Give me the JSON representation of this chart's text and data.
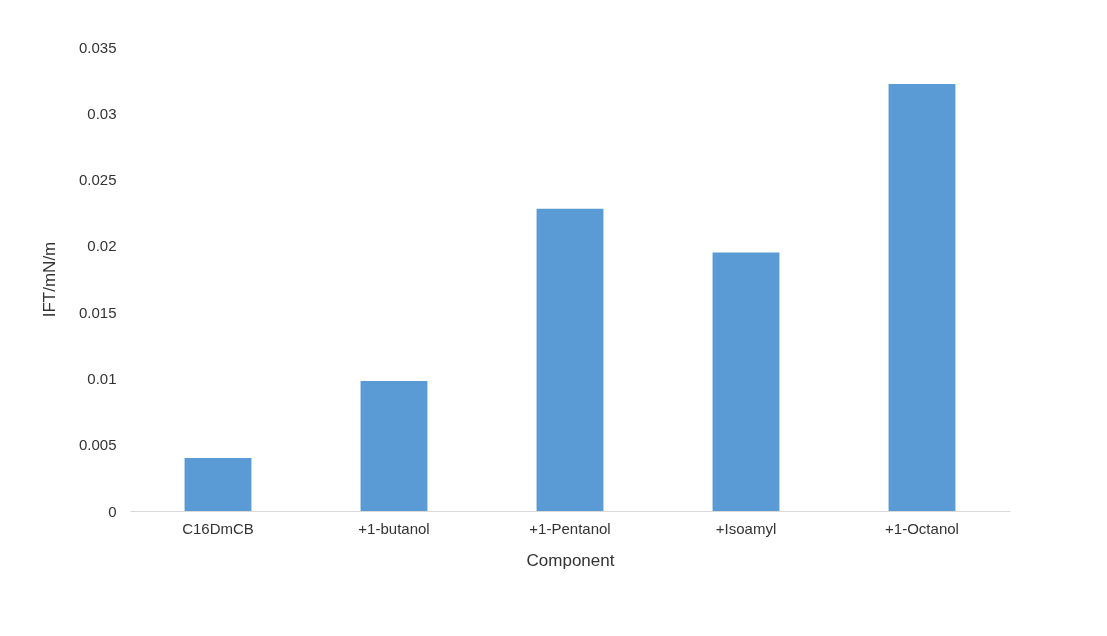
{
  "chart_data": {
    "type": "bar",
    "xlabel": "Component",
    "ylabel": "IFT/mN/m",
    "categories": [
      "C16DmCB",
      "+1-butanol",
      "+1-Pentanol",
      "+Isoamyl",
      "+1-Octanol"
    ],
    "values": [
      0.004,
      0.0098,
      0.0228,
      0.0195,
      0.0322
    ],
    "color": "#5b9bd5",
    "ylim": [
      0,
      0.035
    ],
    "yticks": [
      0,
      0.005,
      0.01,
      0.015,
      0.02,
      0.025,
      0.03,
      0.035
    ],
    "grid": false
  }
}
